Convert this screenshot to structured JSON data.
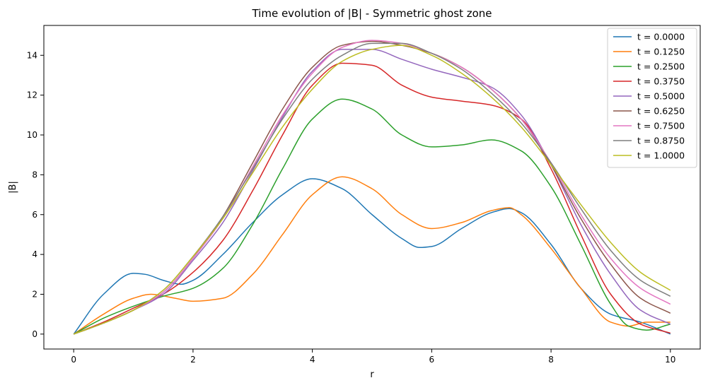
{
  "chart_data": {
    "type": "line",
    "title": "Time evolution of |B| - Symmetric ghost zone",
    "xlabel": "r",
    "ylabel": "|B|",
    "xlim": [
      -0.5,
      10.5
    ],
    "ylim": [
      -0.75,
      15.5
    ],
    "xticks": [
      0,
      2,
      4,
      6,
      8,
      10
    ],
    "yticks": [
      0,
      2,
      4,
      6,
      8,
      10,
      12,
      14
    ],
    "grid": false,
    "legend_position": "top-right",
    "series": [
      {
        "name": "t = 0.0000",
        "color": "#1f77b4",
        "x": [
          0,
          0.5,
          1.0,
          1.2,
          1.5,
          1.8,
          2.0,
          2.5,
          3.0,
          3.5,
          4.0,
          4.5,
          5.0,
          5.5,
          5.8,
          6.0,
          6.5,
          7.0,
          7.3,
          7.5,
          8.0,
          8.5,
          9.0,
          9.5,
          10.0
        ],
        "y": [
          0,
          2.0,
          3.05,
          3.0,
          2.7,
          2.5,
          2.7,
          4.0,
          5.6,
          7.0,
          7.8,
          7.3,
          6.0,
          4.8,
          4.35,
          4.4,
          5.3,
          6.1,
          6.3,
          6.1,
          4.5,
          2.3,
          1.0,
          0.6,
          0
        ]
      },
      {
        "name": "t = 0.1250",
        "color": "#ff7f0e",
        "x": [
          0,
          0.5,
          1.0,
          1.3,
          1.7,
          2.0,
          2.5,
          3.0,
          3.5,
          4.0,
          4.5,
          5.0,
          5.5,
          6.0,
          6.5,
          7.0,
          7.3,
          7.5,
          8.0,
          8.5,
          9.0,
          9.3,
          9.6,
          10.0
        ],
        "y": [
          0,
          1.0,
          1.8,
          2.0,
          1.8,
          1.65,
          1.8,
          3.0,
          5.0,
          7.0,
          7.9,
          7.3,
          6.0,
          5.3,
          5.6,
          6.2,
          6.35,
          6.0,
          4.3,
          2.3,
          0.6,
          0.4,
          0.6,
          0.6
        ]
      },
      {
        "name": "t = 0.2500",
        "color": "#2ca02c",
        "x": [
          0,
          0.5,
          1.0,
          1.5,
          2.0,
          2.5,
          3.0,
          3.5,
          4.0,
          4.5,
          5.0,
          5.5,
          6.0,
          6.5,
          7.0,
          7.5,
          8.0,
          8.5,
          9.0,
          9.3,
          9.6,
          10.0
        ],
        "y": [
          0,
          0.8,
          1.4,
          1.9,
          2.3,
          3.3,
          5.5,
          8.3,
          10.8,
          11.8,
          11.3,
          10.0,
          9.4,
          9.5,
          9.75,
          9.2,
          7.4,
          4.5,
          1.5,
          0.4,
          0.2,
          0.5
        ]
      },
      {
        "name": "t = 0.3750",
        "color": "#d62728",
        "x": [
          0,
          0.5,
          1.0,
          1.5,
          2.0,
          2.5,
          3.0,
          3.5,
          4.0,
          4.5,
          5.0,
          5.5,
          6.0,
          6.5,
          7.0,
          7.5,
          8.0,
          8.5,
          9.0,
          9.5,
          10.0
        ],
        "y": [
          0,
          0.6,
          1.3,
          2.0,
          3.1,
          4.7,
          7.2,
          10.0,
          12.5,
          13.6,
          13.5,
          12.5,
          11.9,
          11.7,
          11.5,
          10.8,
          8.3,
          5.0,
          2.0,
          0.5,
          0.05
        ]
      },
      {
        "name": "t = 0.5000",
        "color": "#9467bd",
        "x": [
          0,
          0.5,
          1.0,
          1.5,
          2.0,
          2.5,
          3.0,
          3.5,
          4.0,
          4.5,
          5.0,
          5.5,
          6.0,
          6.5,
          7.0,
          7.5,
          8.0,
          8.5,
          9.0,
          9.5,
          10.0
        ],
        "y": [
          0,
          0.55,
          1.2,
          2.0,
          3.7,
          5.6,
          8.2,
          10.9,
          13.2,
          14.3,
          14.3,
          13.8,
          13.3,
          12.9,
          12.4,
          11.0,
          8.5,
          5.5,
          3.0,
          1.2,
          0.5
        ]
      },
      {
        "name": "t = 0.6250",
        "color": "#8c564b",
        "x": [
          0,
          0.5,
          1.0,
          1.5,
          2.0,
          2.5,
          3.0,
          3.5,
          4.0,
          4.5,
          5.0,
          5.5,
          6.0,
          6.5,
          7.0,
          7.5,
          8.0,
          8.5,
          9.0,
          9.5,
          10.0
        ],
        "y": [
          0,
          0.55,
          1.2,
          2.1,
          3.8,
          5.9,
          8.6,
          11.3,
          13.4,
          14.5,
          14.7,
          14.5,
          14.1,
          13.4,
          12.3,
          10.8,
          8.5,
          5.8,
          3.5,
          1.8,
          1.05
        ]
      },
      {
        "name": "t = 0.7500",
        "color": "#e377c2",
        "x": [
          0,
          0.5,
          1.0,
          1.5,
          2.0,
          2.5,
          3.0,
          3.5,
          4.0,
          4.5,
          5.0,
          5.5,
          6.0,
          6.5,
          7.0,
          7.5,
          8.0,
          8.5,
          9.0,
          9.5,
          10.0
        ],
        "y": [
          0,
          0.55,
          1.2,
          2.1,
          3.8,
          5.8,
          8.4,
          11.0,
          13.1,
          14.4,
          14.75,
          14.6,
          14.1,
          13.4,
          12.3,
          10.8,
          8.6,
          6.0,
          3.8,
          2.3,
          1.5
        ]
      },
      {
        "name": "t = 0.8750",
        "color": "#7f7f7f",
        "x": [
          0,
          0.5,
          1.0,
          1.5,
          2.0,
          2.5,
          3.0,
          3.5,
          4.0,
          4.5,
          5.0,
          5.5,
          6.0,
          6.5,
          7.0,
          7.5,
          8.0,
          8.5,
          9.0,
          9.5,
          10.0
        ],
        "y": [
          0,
          0.55,
          1.2,
          2.2,
          3.9,
          5.9,
          8.3,
          10.8,
          12.8,
          14.0,
          14.6,
          14.6,
          14.1,
          13.3,
          12.1,
          10.6,
          8.6,
          6.3,
          4.2,
          2.7,
          1.9
        ]
      },
      {
        "name": "t = 1.0000",
        "color": "#bcbd22",
        "x": [
          0,
          0.5,
          1.0,
          1.5,
          2.0,
          2.5,
          3.0,
          3.5,
          4.0,
          4.5,
          5.0,
          5.5,
          6.0,
          6.5,
          7.0,
          7.5,
          8.0,
          8.5,
          9.0,
          9.5,
          10.0
        ],
        "y": [
          0,
          0.55,
          1.2,
          2.2,
          3.9,
          5.8,
          8.1,
          10.4,
          12.3,
          13.7,
          14.3,
          14.5,
          14.0,
          13.1,
          11.9,
          10.4,
          8.5,
          6.5,
          4.6,
          3.1,
          2.2
        ]
      }
    ]
  }
}
